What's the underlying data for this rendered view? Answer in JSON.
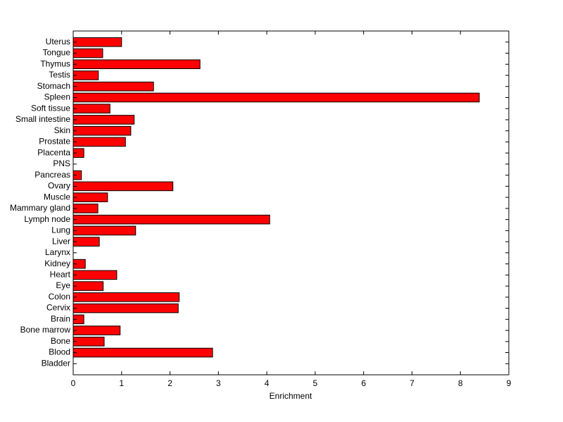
{
  "chart_data": {
    "type": "barh",
    "x_label": "Enrichment",
    "categories": [
      "Bladder",
      "Blood",
      "Bone",
      "Bone marrow",
      "Brain",
      "Cervix",
      "Colon",
      "Eye",
      "Heart",
      "Kidney",
      "Larynx",
      "Liver",
      "Lung",
      "Lymph node",
      "Mammary gland",
      "Muscle",
      "Ovary",
      "Pancreas",
      "PNS",
      "Placenta",
      "Prostate",
      "Skin",
      "Small intestine",
      "Soft tissue",
      "Spleen",
      "Stomach",
      "Testis",
      "Thymus",
      "Tongue",
      "Uterus"
    ],
    "values": [
      0,
      2.88,
      0.64,
      0.97,
      0.22,
      2.17,
      2.19,
      0.62,
      0.9,
      0.25,
      0,
      0.54,
      1.29,
      4.06,
      0.51,
      0.71,
      2.06,
      0.17,
      0,
      0.22,
      1.08,
      1.19,
      1.26,
      0.76,
      8.39,
      1.66,
      0.52,
      2.62,
      0.61,
      1.0
    ],
    "color": "#ff0000",
    "xlim": [
      0,
      9
    ],
    "xticks": [
      0,
      1,
      2,
      3,
      4,
      5,
      6,
      7,
      8,
      9
    ]
  }
}
